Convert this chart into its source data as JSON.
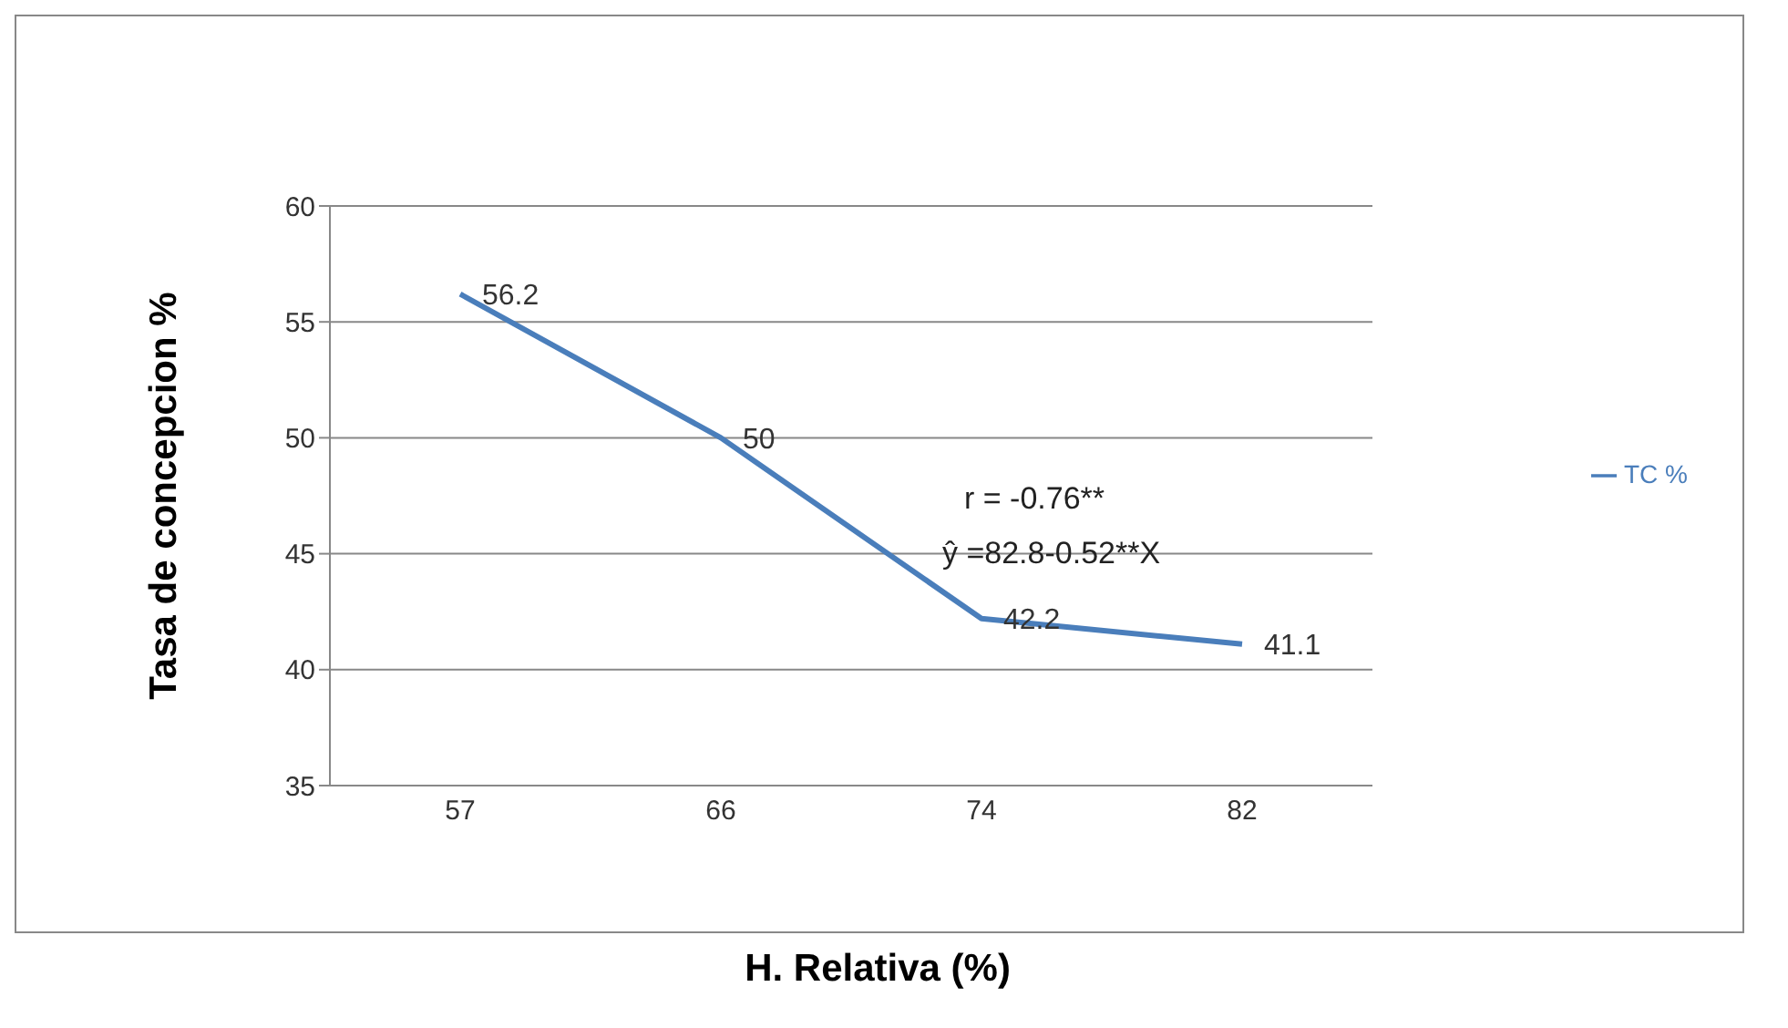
{
  "chart_data": {
    "type": "line",
    "xlabel": "H. Relativa (%)",
    "ylabel": "Tasa de concepcion %",
    "categories": [
      "57",
      "66",
      "74",
      "82"
    ],
    "series": [
      {
        "name": "TC %",
        "color": "#4a7ebb",
        "values": [
          56.2,
          50,
          42.2,
          41.1
        ]
      }
    ],
    "ylim": [
      35,
      60
    ],
    "yticks": [
      35,
      40,
      45,
      50,
      55,
      60
    ],
    "grid": "y",
    "legend": "right",
    "marker": "none",
    "data_labels": true,
    "annotations": [
      "r = -0.76**",
      "ŷ =82.8-0.52**X"
    ]
  }
}
